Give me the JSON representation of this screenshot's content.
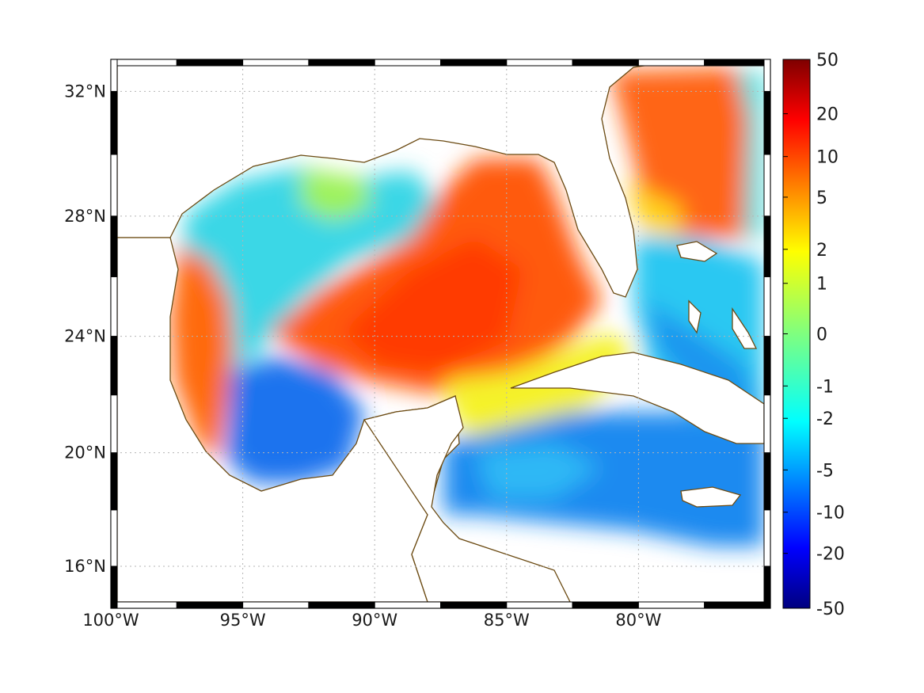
{
  "map": {
    "projection": "mercator",
    "lon_range": [
      -100,
      -75
    ],
    "lat_range": [
      14.5,
      33
    ],
    "lon_ticks": [
      {
        "value": -100,
        "label": "100°W"
      },
      {
        "value": -95,
        "label": "95°W"
      },
      {
        "value": -90,
        "label": "90°W"
      },
      {
        "value": -85,
        "label": "85°W"
      },
      {
        "value": -80,
        "label": "80°W"
      }
    ],
    "lat_ticks": [
      {
        "value": 16,
        "label": "16°N"
      },
      {
        "value": 20,
        "label": "20°N"
      },
      {
        "value": 24,
        "label": "24°N"
      },
      {
        "value": 28,
        "label": "28°N"
      },
      {
        "value": 32,
        "label": "32°N"
      }
    ],
    "grid": "dotted",
    "frame": "alternating-black-white",
    "coastline_color": "#6b4a12",
    "land_color": "#ffffff",
    "features": [
      "Gulf of Mexico",
      "Florida",
      "Yucatan",
      "Cuba",
      "Jamaica",
      "Bahamas"
    ]
  },
  "colorbar": {
    "colormap": "jet",
    "orientation": "vertical",
    "placement": "right",
    "tick_labels": [
      "50",
      "20",
      "10",
      "5",
      "2",
      "1",
      "0",
      "-1",
      "-2",
      "-5",
      "-10",
      "-20",
      "-50"
    ],
    "tick_values": [
      50,
      20,
      10,
      5,
      2,
      1,
      0,
      -1,
      -2,
      -5,
      -10,
      -20,
      -50
    ]
  },
  "field_regions": [
    {
      "name": "gulf-central-warm",
      "value": 8
    },
    {
      "name": "bay-of-campeche-cool",
      "value": -4
    },
    {
      "name": "western-gulf-cool",
      "value": -2
    },
    {
      "name": "western-shelf-warm",
      "value": 6
    },
    {
      "name": "atlantic-north-warm",
      "value": 7
    },
    {
      "name": "caribbean-cool",
      "value": -3
    },
    {
      "name": "bahamas-cool",
      "value": -2
    }
  ]
}
